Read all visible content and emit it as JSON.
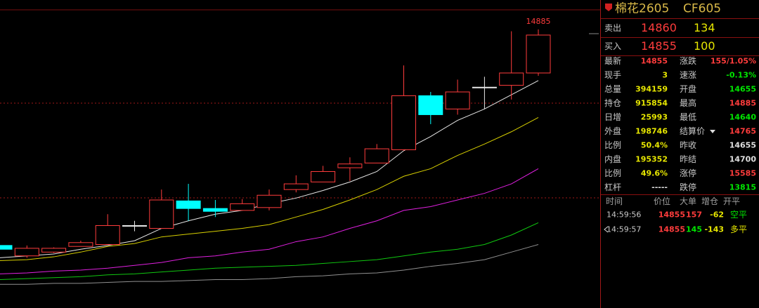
{
  "chart_data": {
    "type": "candlestick",
    "up_color": "#ff3c3c",
    "down_color": "#00ffff",
    "doji_color": "#e8e8e8",
    "ylim": [
      13415,
      15040
    ],
    "open": [
      13745,
      13690,
      13710,
      13740,
      13750,
      13850,
      13835,
      13980,
      13940,
      13930,
      13945,
      14040,
      14080,
      14155,
      14180,
      14250,
      14535,
      14465,
      14580,
      14590,
      14655
    ],
    "high": [
      13745,
      13745,
      13735,
      13770,
      13910,
      13875,
      14040,
      14070,
      13985,
      13990,
      14040,
      14115,
      14165,
      14210,
      14280,
      14695,
      14555,
      14620,
      14635,
      14875,
      14885
    ],
    "low": [
      13725,
      13680,
      13705,
      13740,
      13750,
      13820,
      13835,
      13875,
      13895,
      13930,
      13930,
      14025,
      14080,
      14085,
      14180,
      14245,
      14385,
      14435,
      14465,
      14515,
      14640
    ],
    "close": [
      13725,
      13730,
      13730,
      13760,
      13850,
      13850,
      13985,
      13940,
      13925,
      13965,
      14010,
      14070,
      14135,
      14175,
      14255,
      14535,
      14435,
      14555,
      14580,
      14655,
      14855
    ],
    "series": [
      {
        "color": "#e8e8e8",
        "values": [
          13680,
          13690,
          13700,
          13725,
          13745,
          13770,
          13835,
          13875,
          13910,
          13930,
          13965,
          13995,
          14035,
          14080,
          14135,
          14245,
          14320,
          14405,
          14465,
          14540,
          14615
        ]
      },
      {
        "color": "#d8d000",
        "values": [
          13665,
          13670,
          13685,
          13710,
          13740,
          13755,
          13790,
          13805,
          13820,
          13835,
          13855,
          13895,
          13935,
          13985,
          14040,
          14110,
          14150,
          14220,
          14280,
          14345,
          14420
        ]
      },
      {
        "color": "#e020e0",
        "values": [
          13595,
          13600,
          13610,
          13615,
          13625,
          13640,
          13655,
          13680,
          13690,
          13710,
          13725,
          13765,
          13790,
          13835,
          13875,
          13930,
          13950,
          13985,
          14020,
          14070,
          14150
        ]
      },
      {
        "color": "#10c810",
        "values": [
          13565,
          13570,
          13575,
          13580,
          13590,
          13595,
          13605,
          13615,
          13625,
          13630,
          13635,
          13640,
          13650,
          13660,
          13670,
          13690,
          13710,
          13725,
          13750,
          13800,
          13865
        ]
      },
      {
        "color": "#909090",
        "values": [
          13540,
          13540,
          13545,
          13545,
          13550,
          13555,
          13555,
          13560,
          13565,
          13565,
          13570,
          13580,
          13585,
          13595,
          13600,
          13615,
          13635,
          13650,
          13670,
          13710,
          13750
        ]
      }
    ]
  },
  "panel": {
    "title": "棉花2605",
    "code": "CF605",
    "sell": {
      "label": "卖出",
      "price": 14860,
      "volume": 134
    },
    "buy": {
      "label": "买入",
      "price": 14855,
      "volume": 100
    },
    "quotes": [
      [
        {
          "label": "最新",
          "value": 14855,
          "color": "#ff3c3c"
        },
        {
          "label": "涨跌",
          "value": "155/1.05%",
          "color": "#ff3c3c"
        }
      ],
      [
        {
          "label": "现手",
          "value": 3,
          "color": "#e6e600"
        },
        {
          "label": "速涨",
          "value": "-0.13%",
          "color": "#00e600"
        }
      ],
      [
        {
          "label": "总量",
          "value": 394159,
          "color": "#e6e600"
        },
        {
          "label": "开盘",
          "value": 14655,
          "color": "#00e600"
        }
      ],
      [
        {
          "label": "持仓",
          "value": 915854,
          "color": "#e6e600"
        },
        {
          "label": "最高",
          "value": 14885,
          "color": "#ff3c3c"
        }
      ],
      [
        {
          "label": "日增",
          "value": 25993,
          "color": "#e6e600"
        },
        {
          "label": "最低",
          "value": 14640,
          "color": "#00e600"
        }
      ],
      [
        {
          "label": "外盘",
          "value": 198746,
          "color": "#e6e600"
        },
        {
          "label": "结算价",
          "value": 14765,
          "color": "#ff3c3c"
        }
      ],
      [
        {
          "label": "比例",
          "value": "50.4%",
          "color": "#e6e600"
        },
        {
          "label": "昨收",
          "value": 14655,
          "color": "#e0e0e0"
        }
      ],
      [
        {
          "label": "内盘",
          "value": 195352,
          "color": "#e6e600"
        },
        {
          "label": "昨结",
          "value": 14700,
          "color": "#e0e0e0"
        }
      ],
      [
        {
          "label": "比例",
          "value": "49.6%",
          "color": "#e6e600"
        },
        {
          "label": "涨停",
          "value": 15585,
          "color": "#ff3c3c"
        }
      ],
      [
        {
          "label": "杠杆",
          "value": "-----",
          "color": "#e0e0e0"
        },
        {
          "label": "跌停",
          "value": 13815,
          "color": "#00e600"
        }
      ]
    ],
    "trades": {
      "header": [
        "时间",
        "价位",
        "大单",
        "增仓",
        "开平"
      ],
      "rows": [
        [
          {
            "text": "14:59:56",
            "color": "#c8c8c8"
          },
          {
            "text": 14855,
            "color": "#ff3c3c"
          },
          {
            "text": 157,
            "color": "#ff3c3c"
          },
          {
            "text": -62,
            "color": "#e6e600"
          },
          {
            "text": "空平",
            "color": "#00e600"
          }
        ],
        [
          {
            "text": "14:59:57",
            "color": "#c8c8c8"
          },
          {
            "text": 14855,
            "color": "#ff3c3c"
          },
          {
            "text": 145,
            "color": "#00e600"
          },
          {
            "text": -143,
            "color": "#e6e600"
          },
          {
            "text": "多平",
            "color": "#e6e600"
          }
        ]
      ]
    }
  }
}
